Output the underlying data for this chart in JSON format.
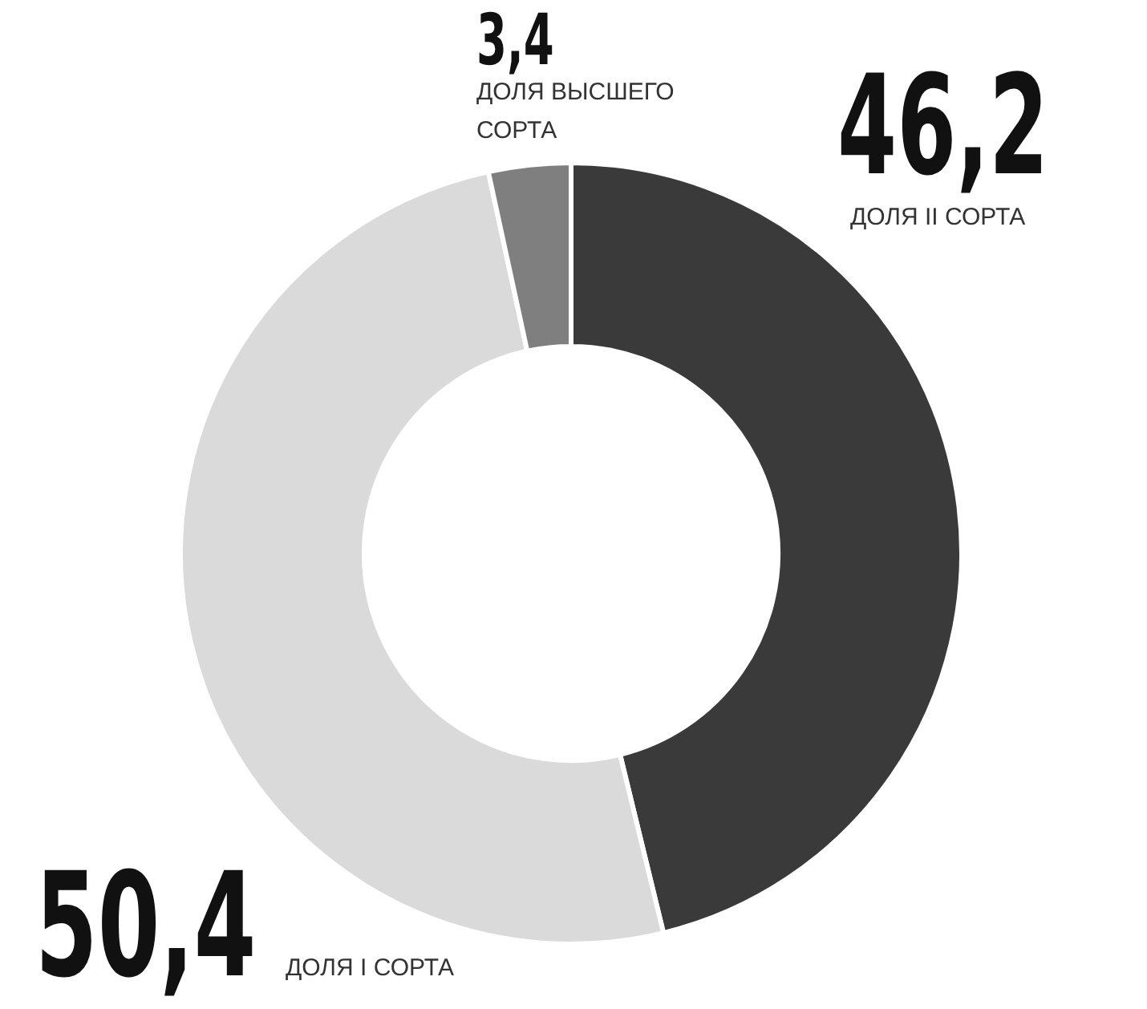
{
  "chart_data": {
    "type": "donut",
    "categories": [
      "ДОЛЯ II СОРТА",
      "ДОЛЯ I СОРТА",
      "ДОЛЯ ВЫСШЕГО СОРТА"
    ],
    "values": [
      46.2,
      50.4,
      3.4
    ],
    "colors": [
      "#3a3a3a",
      "#dadada",
      "#7f7f7f"
    ],
    "value_labels": [
      "46,2",
      "50,4",
      "3,4"
    ],
    "legend": false
  }
}
